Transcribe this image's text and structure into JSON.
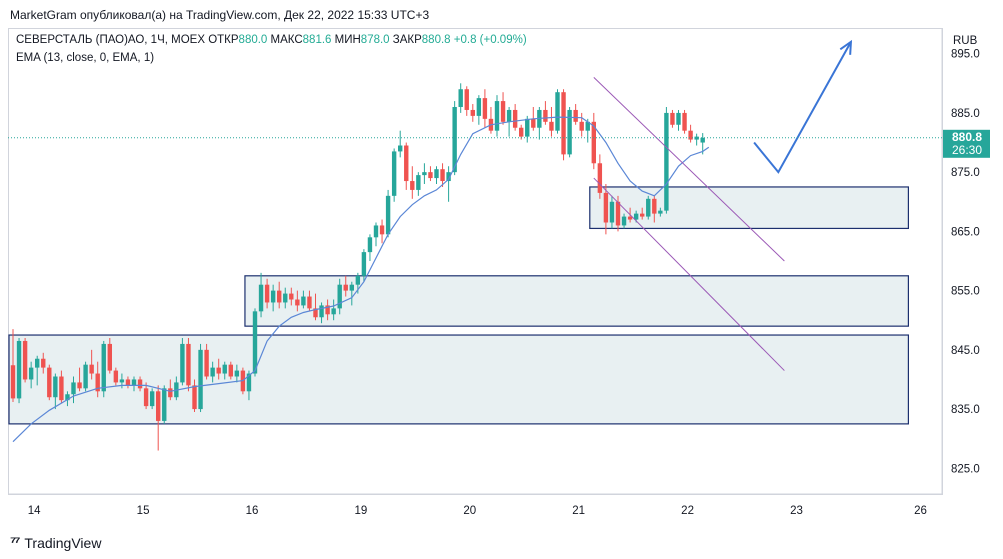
{
  "header": {
    "attribution": "MarketGram опубликовал(а) на TradingView.com, Дек 22, 2022 15:33 UTC+3"
  },
  "legend": {
    "symbol": "СЕВЕРСТАЛЬ (ПАО)АО, 1Ч, MOEX",
    "open_label": "ОТКР",
    "open": "880.0",
    "high_label": "МАКС",
    "high": "881.6",
    "low_label": "МИН",
    "low": "878.0",
    "close_label": "ЗАКР",
    "close": "880.8",
    "change": "+0.8 (+0.09%)",
    "indicator": "EMA (13, close, 0, EMA, 1)"
  },
  "price_badge": {
    "price": "880.8",
    "countdown": "26:30"
  },
  "footer": {
    "brand": "TradingView"
  },
  "colors": {
    "up": "#26a69a",
    "down": "#ef5350",
    "ema": "#5b87d6",
    "box_border": "#1c2f6e",
    "box_fill": "#e8f0f2",
    "channel": "#9b59b6",
    "arrow": "#3a75d6"
  },
  "chart_data": {
    "type": "candlestick",
    "currency": "RUB",
    "ylim": [
      821,
      899
    ],
    "y_ticks": [
      825.0,
      835.0,
      845.0,
      855.0,
      865.0,
      875.0,
      885.0,
      895.0
    ],
    "x_ticks": [
      {
        "label": "14",
        "bar": 3.5
      },
      {
        "label": "15",
        "bar": 21.5
      },
      {
        "label": "16",
        "bar": 39.5
      },
      {
        "label": "19",
        "bar": 57.5
      },
      {
        "label": "20",
        "bar": 75.5
      },
      {
        "label": "21",
        "bar": 93.5
      },
      {
        "label": "22",
        "bar": 111.5
      },
      {
        "label": "23",
        "bar": 129.5
      },
      {
        "label": "26",
        "bar": 150
      }
    ],
    "last_price": 880.8,
    "ohlc": [
      [
        842.4,
        848.5,
        836.2,
        836.8
      ],
      [
        836.8,
        847.0,
        836.0,
        846.5
      ],
      [
        846.5,
        847.0,
        839.5,
        840.0
      ],
      [
        840.0,
        843.0,
        838.5,
        842.0
      ],
      [
        842.0,
        844.0,
        839.0,
        843.5
      ],
      [
        843.5,
        844.5,
        841.0,
        842.0
      ],
      [
        842.0,
        842.5,
        836.5,
        837.0
      ],
      [
        837.0,
        841.0,
        835.0,
        840.5
      ],
      [
        840.5,
        841.5,
        836.0,
        836.5
      ],
      [
        836.5,
        838.0,
        835.5,
        837.5
      ],
      [
        837.5,
        840.5,
        836.0,
        839.5
      ],
      [
        839.5,
        842.0,
        838.0,
        838.5
      ],
      [
        838.5,
        843.0,
        838.0,
        842.5
      ],
      [
        842.5,
        845.0,
        840.0,
        841.0
      ],
      [
        841.0,
        843.0,
        837.0,
        838.0
      ],
      [
        838.0,
        846.5,
        837.0,
        846.0
      ],
      [
        846.0,
        847.0,
        841.0,
        841.5
      ],
      [
        841.5,
        842.0,
        839.0,
        839.5
      ],
      [
        839.5,
        841.0,
        838.5,
        840.0
      ],
      [
        840.0,
        840.5,
        838.5,
        839.0
      ],
      [
        839.0,
        840.5,
        838.0,
        840.0
      ],
      [
        840.0,
        840.5,
        838.0,
        838.5
      ],
      [
        838.5,
        839.5,
        835.0,
        835.5
      ],
      [
        835.5,
        838.5,
        835.0,
        838.0
      ],
      [
        838.0,
        839.0,
        828.0,
        833.0
      ],
      [
        833.0,
        839.0,
        832.5,
        838.5
      ],
      [
        838.5,
        840.0,
        836.5,
        837.0
      ],
      [
        837.0,
        840.5,
        836.5,
        839.5
      ],
      [
        839.5,
        847.0,
        839.0,
        846.0
      ],
      [
        846.0,
        847.0,
        838.0,
        839.0
      ],
      [
        839.0,
        840.0,
        834.5,
        835.0
      ],
      [
        835.0,
        846.0,
        834.5,
        845.0
      ],
      [
        845.0,
        846.0,
        840.0,
        840.5
      ],
      [
        840.5,
        843.0,
        839.5,
        842.0
      ],
      [
        842.0,
        843.5,
        840.0,
        841.0
      ],
      [
        841.0,
        843.0,
        840.0,
        842.5
      ],
      [
        842.5,
        843.0,
        840.0,
        840.5
      ],
      [
        840.5,
        842.5,
        839.5,
        841.5
      ],
      [
        841.5,
        842.0,
        837.5,
        838.0
      ],
      [
        838.0,
        841.5,
        836.5,
        841.0
      ],
      [
        841.0,
        852.0,
        840.5,
        851.5
      ],
      [
        851.5,
        858.0,
        850.5,
        856.0
      ],
      [
        856.0,
        857.0,
        852.0,
        853.0
      ],
      [
        853.0,
        856.0,
        851.5,
        855.0
      ],
      [
        855.0,
        856.5,
        852.0,
        853.0
      ],
      [
        853.0,
        855.5,
        852.0,
        854.5
      ],
      [
        854.5,
        855.5,
        852.5,
        853.5
      ],
      [
        853.5,
        855.0,
        851.5,
        852.5
      ],
      [
        852.5,
        855.0,
        852.0,
        854.0
      ],
      [
        854.0,
        855.0,
        851.5,
        852.0
      ],
      [
        852.0,
        854.5,
        850.0,
        850.5
      ],
      [
        850.5,
        853.0,
        849.5,
        852.5
      ],
      [
        852.5,
        853.5,
        850.0,
        851.0
      ],
      [
        851.0,
        853.5,
        850.0,
        852.0
      ],
      [
        852.0,
        857.0,
        851.0,
        856.0
      ],
      [
        856.0,
        857.5,
        854.0,
        855.0
      ],
      [
        855.0,
        856.5,
        852.5,
        856.0
      ],
      [
        856.0,
        858.0,
        854.5,
        857.5
      ],
      [
        857.5,
        862.0,
        856.5,
        861.5
      ],
      [
        861.5,
        864.5,
        860.0,
        864.0
      ],
      [
        864.0,
        866.5,
        862.5,
        866.0
      ],
      [
        866.0,
        867.0,
        863.0,
        864.5
      ],
      [
        864.5,
        872.0,
        864.0,
        871.0
      ],
      [
        871.0,
        879.0,
        870.0,
        878.5
      ],
      [
        878.5,
        882.0,
        877.5,
        879.5
      ],
      [
        879.5,
        880.0,
        872.0,
        873.5
      ],
      [
        873.5,
        876.0,
        870.5,
        872.0
      ],
      [
        872.0,
        875.0,
        871.0,
        874.5
      ],
      [
        874.5,
        876.5,
        873.0,
        875.0
      ],
      [
        875.0,
        876.0,
        873.5,
        874.0
      ],
      [
        874.0,
        876.0,
        873.0,
        875.5
      ],
      [
        875.5,
        876.5,
        872.5,
        873.5
      ],
      [
        873.5,
        876.0,
        870.0,
        875.0
      ],
      [
        875.0,
        887.0,
        874.5,
        886.0
      ],
      [
        886.0,
        890.0,
        885.0,
        889.0
      ],
      [
        889.0,
        889.5,
        884.5,
        885.5
      ],
      [
        885.5,
        886.5,
        883.5,
        884.5
      ],
      [
        884.5,
        888.0,
        883.0,
        887.5
      ],
      [
        887.5,
        889.0,
        882.5,
        884.0
      ],
      [
        884.0,
        886.0,
        881.5,
        882.0
      ],
      [
        882.0,
        888.0,
        881.0,
        887.0
      ],
      [
        887.0,
        888.5,
        883.0,
        883.5
      ],
      [
        883.5,
        886.0,
        881.0,
        885.5
      ],
      [
        885.5,
        886.5,
        882.0,
        882.5
      ],
      [
        882.5,
        883.0,
        880.5,
        881.0
      ],
      [
        881.0,
        884.5,
        880.0,
        884.0
      ],
      [
        884.0,
        886.0,
        882.0,
        882.5
      ],
      [
        882.5,
        886.0,
        880.5,
        885.5
      ],
      [
        885.5,
        887.0,
        883.0,
        883.5
      ],
      [
        883.5,
        886.0,
        881.0,
        882.0
      ],
      [
        882.0,
        889.0,
        881.5,
        888.5
      ],
      [
        888.5,
        889.0,
        877.0,
        878.0
      ],
      [
        878.0,
        886.0,
        877.5,
        885.5
      ],
      [
        885.5,
        886.5,
        883.0,
        883.5
      ],
      [
        883.5,
        885.0,
        881.0,
        882.0
      ],
      [
        882.0,
        884.0,
        880.0,
        883.5
      ],
      [
        883.5,
        885.0,
        875.5,
        876.5
      ],
      [
        876.5,
        878.0,
        870.5,
        871.5
      ],
      [
        871.5,
        873.0,
        864.5,
        866.5
      ],
      [
        866.5,
        871.0,
        865.5,
        870.0
      ],
      [
        870.0,
        871.0,
        865.0,
        866.0
      ],
      [
        866.0,
        868.0,
        865.5,
        867.5
      ],
      [
        867.5,
        869.0,
        866.5,
        867.0
      ],
      [
        867.0,
        868.5,
        866.5,
        868.0
      ],
      [
        868.0,
        869.0,
        867.0,
        867.5
      ],
      [
        867.5,
        871.0,
        867.0,
        870.5
      ],
      [
        870.5,
        871.0,
        866.5,
        868.0
      ],
      [
        868.0,
        869.0,
        867.5,
        868.5
      ],
      [
        868.5,
        886.0,
        868.0,
        885.0
      ],
      [
        885.0,
        885.5,
        882.5,
        883.0
      ],
      [
        883.0,
        885.5,
        882.0,
        885.0
      ],
      [
        885.0,
        885.5,
        881.5,
        882.0
      ],
      [
        882.0,
        883.0,
        880.0,
        880.5
      ],
      [
        880.5,
        881.5,
        879.5,
        881.0
      ],
      [
        880.0,
        881.6,
        878.0,
        880.8
      ]
    ],
    "ema": [
      [
        0,
        829.5
      ],
      [
        3,
        832.5
      ],
      [
        6,
        834.8
      ],
      [
        10,
        837.2
      ],
      [
        14,
        838.5
      ],
      [
        18,
        839.0
      ],
      [
        22,
        839.0
      ],
      [
        26,
        838.0
      ],
      [
        30,
        838.8
      ],
      [
        34,
        839.3
      ],
      [
        38,
        839.8
      ],
      [
        40,
        841.5
      ],
      [
        42,
        846.5
      ],
      [
        44,
        849.0
      ],
      [
        46,
        850.5
      ],
      [
        48,
        851.3
      ],
      [
        50,
        851.8
      ],
      [
        53,
        852.4
      ],
      [
        56,
        853.8
      ],
      [
        58,
        856.5
      ],
      [
        60,
        860.5
      ],
      [
        62,
        864.5
      ],
      [
        64,
        867.5
      ],
      [
        66,
        869.5
      ],
      [
        68,
        871.0
      ],
      [
        70,
        872.0
      ],
      [
        72,
        873.8
      ],
      [
        74,
        878.0
      ],
      [
        76,
        881.5
      ],
      [
        79,
        883.0
      ],
      [
        82,
        883.5
      ],
      [
        86,
        884.0
      ],
      [
        90,
        884.3
      ],
      [
        94,
        884.2
      ],
      [
        96,
        882.8
      ],
      [
        98,
        880.0
      ],
      [
        100,
        876.5
      ],
      [
        102,
        873.5
      ],
      [
        104,
        871.8
      ],
      [
        106,
        871.0
      ],
      [
        108,
        873.0
      ],
      [
        110,
        876.0
      ],
      [
        112,
        877.8
      ],
      [
        114,
        878.5
      ],
      [
        115,
        879.2
      ]
    ],
    "zones": [
      {
        "from_bar": 0,
        "to_bar": 148,
        "low": 832.5,
        "high": 847.5
      },
      {
        "from_bar": 39,
        "to_bar": 148,
        "low": 849.0,
        "high": 857.5
      },
      {
        "from_bar": 96,
        "to_bar": 148,
        "low": 865.5,
        "high": 872.5
      }
    ],
    "channel": [
      {
        "from": [
          96,
          891.0
        ],
        "to": [
          127.5,
          860.0
        ]
      },
      {
        "from": [
          96,
          874.0
        ],
        "to": [
          127.5,
          841.5
        ]
      }
    ],
    "projection": [
      [
        122.5,
        880.0
      ],
      [
        126.5,
        875.0
      ],
      [
        138.5,
        897.0
      ]
    ]
  }
}
